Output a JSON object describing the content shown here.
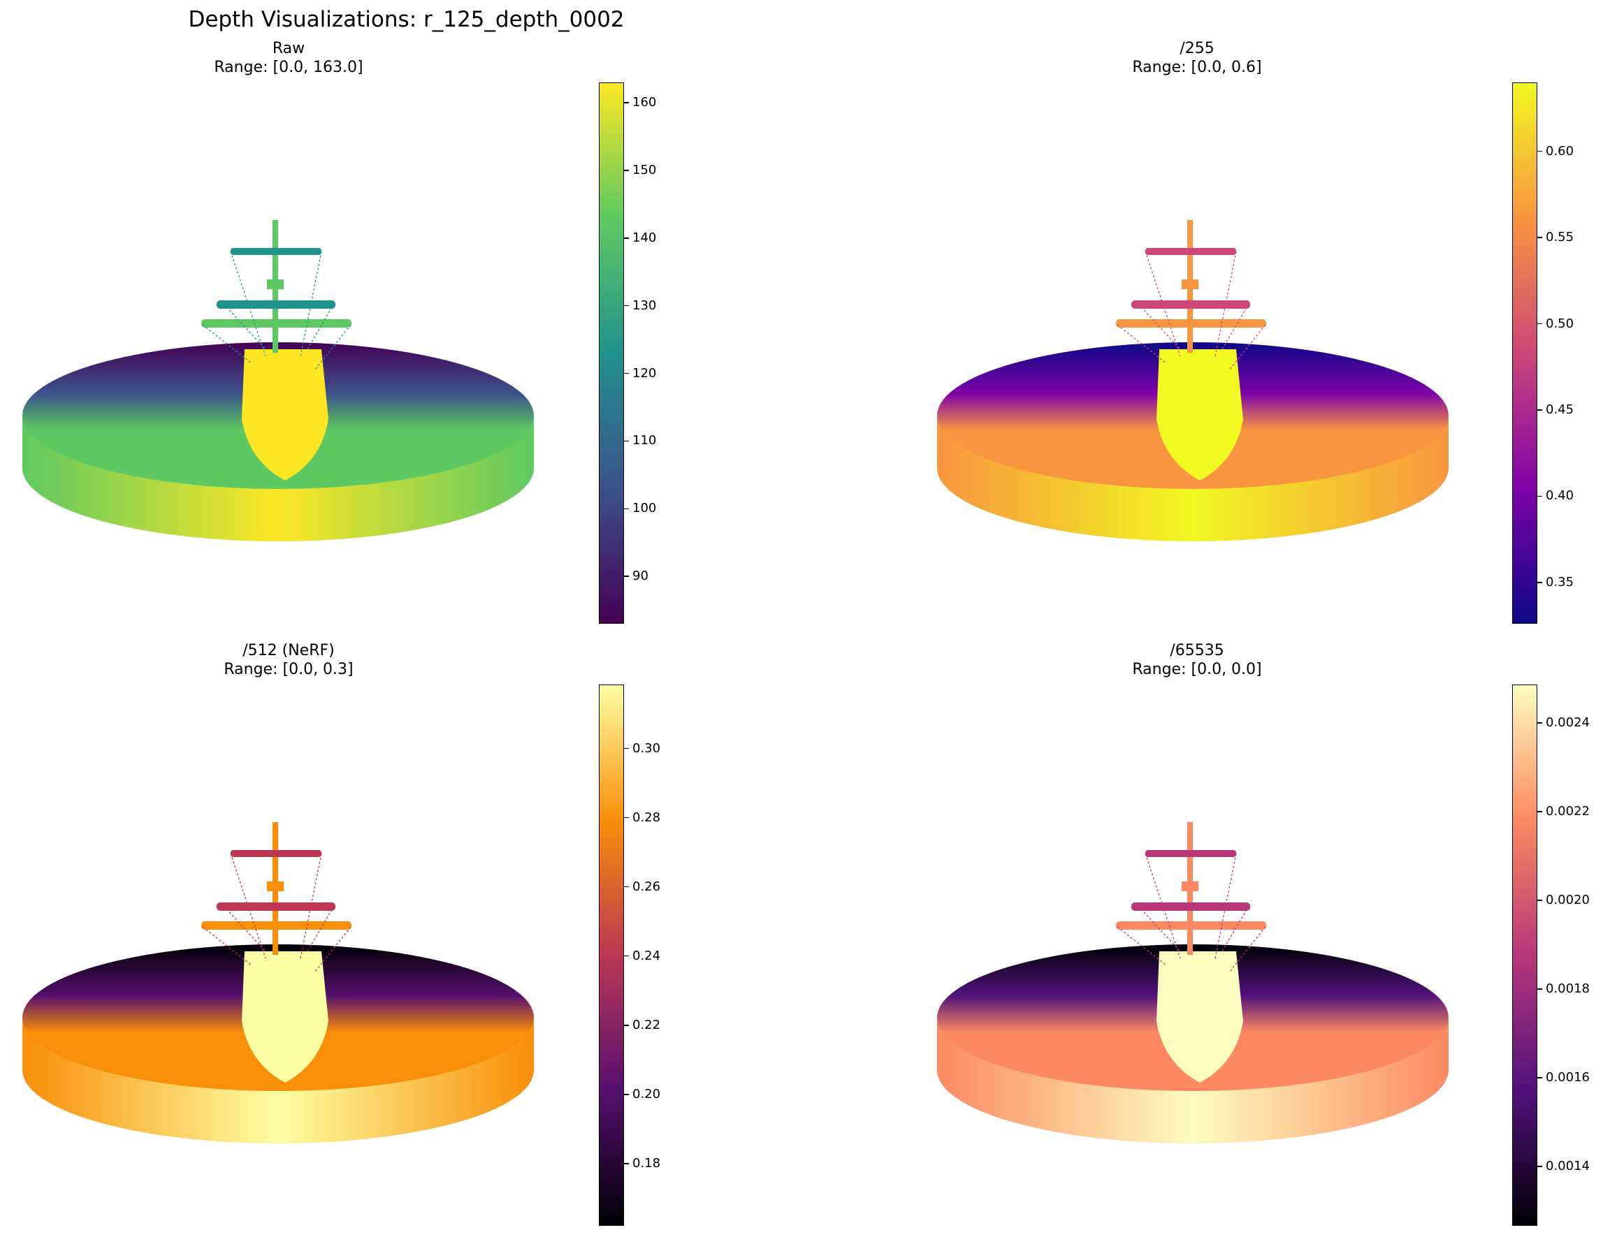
{
  "suptitle": "Depth Visualizations: r_125_depth_0002",
  "chart_data": [
    {
      "type": "heatmap",
      "title": "Raw",
      "subtitle": "Range: [0.0, 163.0]",
      "colormap": "viridis",
      "colors": [
        "#440154",
        "#3b528b",
        "#21918c",
        "#5ec962",
        "#fde725"
      ],
      "colorbar_range": [
        83,
        163
      ],
      "colorbar_ticks": [
        "90",
        "100",
        "110",
        "120",
        "130",
        "140",
        "150",
        "160"
      ],
      "colorbar_tick_values": [
        90,
        100,
        110,
        120,
        130,
        140,
        150,
        160
      ]
    },
    {
      "type": "heatmap",
      "title": "/255",
      "subtitle": "Range: [0.0, 0.6]",
      "colormap": "plasma",
      "colors": [
        "#0d0887",
        "#7e03a8",
        "#cc4778",
        "#f89540",
        "#f0f921"
      ],
      "colorbar_range": [
        0.326,
        0.64
      ],
      "colorbar_ticks": [
        "0.35",
        "0.40",
        "0.45",
        "0.50",
        "0.55",
        "0.60"
      ],
      "colorbar_tick_values": [
        0.35,
        0.4,
        0.45,
        0.5,
        0.55,
        0.6
      ]
    },
    {
      "type": "heatmap",
      "title": "/512 (NeRF)",
      "subtitle": "Range: [0.0, 0.3]",
      "colormap": "inferno",
      "colors": [
        "#000004",
        "#56106e",
        "#bb3754",
        "#f98e09",
        "#fcffa4"
      ],
      "colorbar_range": [
        0.162,
        0.3185
      ],
      "colorbar_ticks": [
        "0.18",
        "0.20",
        "0.22",
        "0.24",
        "0.26",
        "0.28",
        "0.30"
      ],
      "colorbar_tick_values": [
        0.18,
        0.2,
        0.22,
        0.24,
        0.26,
        0.28,
        0.3
      ]
    },
    {
      "type": "heatmap",
      "title": "/65535",
      "subtitle": "Range: [0.0, 0.0]",
      "colormap": "magma",
      "colors": [
        "#000004",
        "#51127c",
        "#b73779",
        "#fc8961",
        "#fcfdbf"
      ],
      "colorbar_range": [
        0.001266,
        0.002487
      ],
      "colorbar_ticks": [
        "0.0014",
        "0.0016",
        "0.0018",
        "0.0020",
        "0.0022",
        "0.0024"
      ],
      "colorbar_tick_values": [
        0.0014,
        0.0016,
        0.0018,
        0.002,
        0.0022,
        0.0024
      ]
    }
  ]
}
